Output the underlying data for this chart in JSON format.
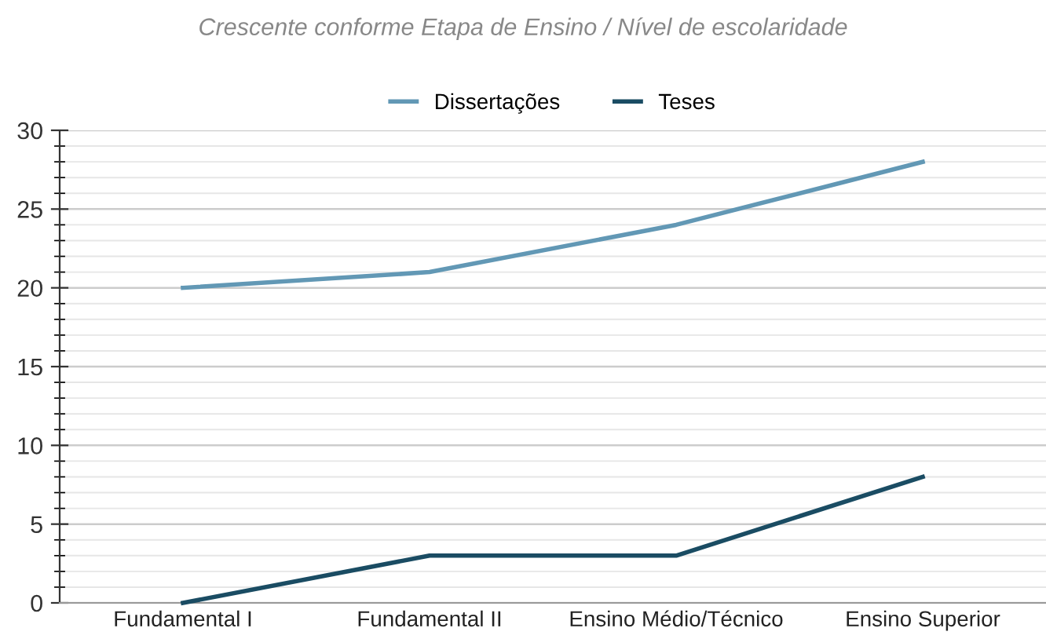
{
  "chart_data": {
    "type": "line",
    "title": "Crescente conforme Etapa de Ensino / Nível de escolaridade",
    "categories": [
      "Fundamental I",
      "Fundamental II",
      "Ensino Médio/Técnico",
      "Ensino Superior"
    ],
    "series": [
      {
        "name": "Dissertações",
        "color": "#6298b5",
        "values": [
          20,
          21,
          24,
          28
        ]
      },
      {
        "name": "Teses",
        "color": "#1a4c63",
        "values": [
          0,
          3,
          3,
          8
        ]
      }
    ],
    "ylim": [
      0,
      30
    ],
    "yticks": [
      0,
      5,
      10,
      15,
      20,
      25,
      30
    ],
    "grid": "y",
    "legend": "top",
    "marker": "none",
    "line_style": "solid"
  }
}
